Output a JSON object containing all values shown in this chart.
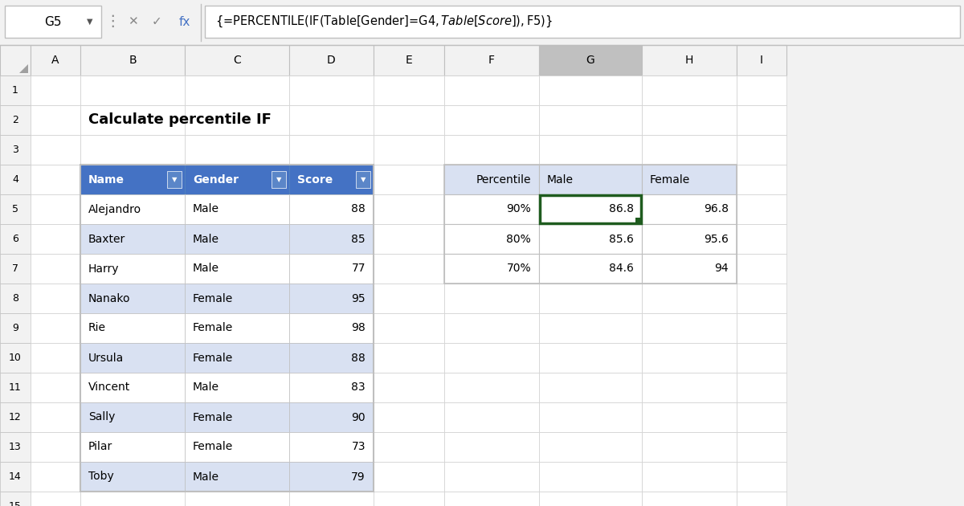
{
  "title": "Calculate percentile IF",
  "formula_bar_cell": "G5",
  "formula_bar_text": "{=PERCENTILE(IF(Table[Gender]=G$4,Table[Score]),$F5)}",
  "col_headers": [
    "A",
    "B",
    "C",
    "D",
    "E",
    "F",
    "G",
    "H",
    "I"
  ],
  "main_table_headers": [
    "Name",
    "Gender",
    "Score"
  ],
  "main_table_data": [
    [
      "Alejandro",
      "Male",
      "88"
    ],
    [
      "Baxter",
      "Male",
      "85"
    ],
    [
      "Harry",
      "Male",
      "77"
    ],
    [
      "Nanako",
      "Female",
      "95"
    ],
    [
      "Rie",
      "Female",
      "98"
    ],
    [
      "Ursula",
      "Female",
      "88"
    ],
    [
      "Vincent",
      "Male",
      "83"
    ],
    [
      "Sally",
      "Female",
      "90"
    ],
    [
      "Pilar",
      "Female",
      "73"
    ],
    [
      "Toby",
      "Male",
      "79"
    ]
  ],
  "result_table_headers": [
    "Percentile",
    "Male",
    "Female"
  ],
  "result_table_data": [
    [
      "90%",
      "86.8",
      "96.8"
    ],
    [
      "80%",
      "85.6",
      "95.6"
    ],
    [
      "70%",
      "84.6",
      "94"
    ]
  ],
  "header_bg_color": "#4472C4",
  "header_text_color": "#FFFFFF",
  "row_alt1_color": "#FFFFFF",
  "row_alt2_color": "#D9E1F2",
  "result_header_bg": "#D9E1F2",
  "grid_color": "#D0D0D0",
  "selected_cell_border": "#1F5C1F",
  "col_header_selected_bg": "#C0C0C0",
  "col_header_normal_bg": "#F2F2F2",
  "formula_bar_bg": "#F2F2F2",
  "top_bar_bg": "#F2F2F2"
}
